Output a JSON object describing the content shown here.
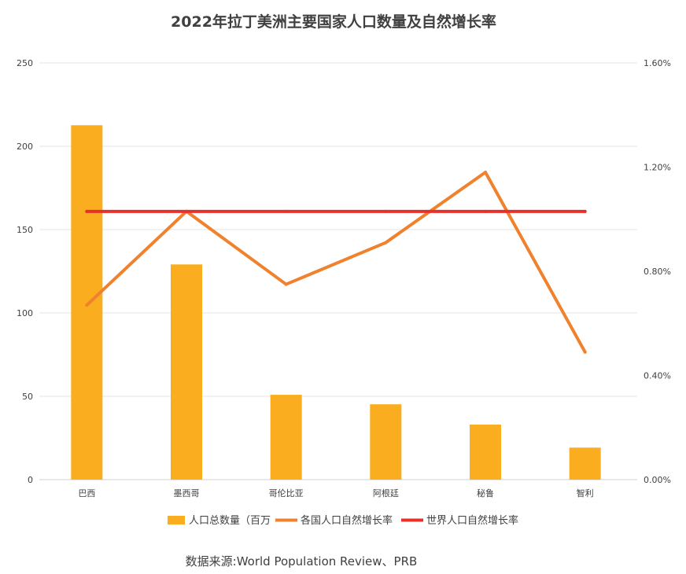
{
  "chart_data": {
    "type": "bar",
    "title": "2022年拉丁美洲主要国家人口数量及自然增长率",
    "categories": [
      "巴西",
      "墨西哥",
      "哥伦比亚",
      "阿根廷",
      "秘鲁",
      "智利"
    ],
    "series": [
      {
        "name": "人口总数量（百万",
        "type": "bar",
        "axis": "left",
        "color": "#FAAD1E",
        "values": [
          212.6,
          129.1,
          50.9,
          45.2,
          33.0,
          19.2
        ]
      },
      {
        "name": "各国人口自然增长率",
        "type": "line",
        "axis": "right",
        "color": "#F0822E",
        "values": [
          0.67,
          1.03,
          0.75,
          0.91,
          1.18,
          0.49
        ]
      },
      {
        "name": "世界人口自然增长率",
        "type": "line",
        "axis": "right",
        "color": "#E8302A",
        "values": [
          1.03,
          1.03,
          1.03,
          1.03,
          1.03,
          1.03
        ]
      }
    ],
    "y_left": {
      "min": 0,
      "max": 250,
      "ticks": [
        "0",
        "50",
        "100",
        "150",
        "200",
        "250"
      ]
    },
    "y_right": {
      "min": 0,
      "max": 1.6,
      "ticks": [
        "0.00%",
        "0.40%",
        "0.80%",
        "1.20%",
        "1.60%"
      ],
      "unit": "%"
    },
    "grid": true,
    "legend_position": "bottom"
  },
  "source": "数据来源:World Population Review、PRB"
}
